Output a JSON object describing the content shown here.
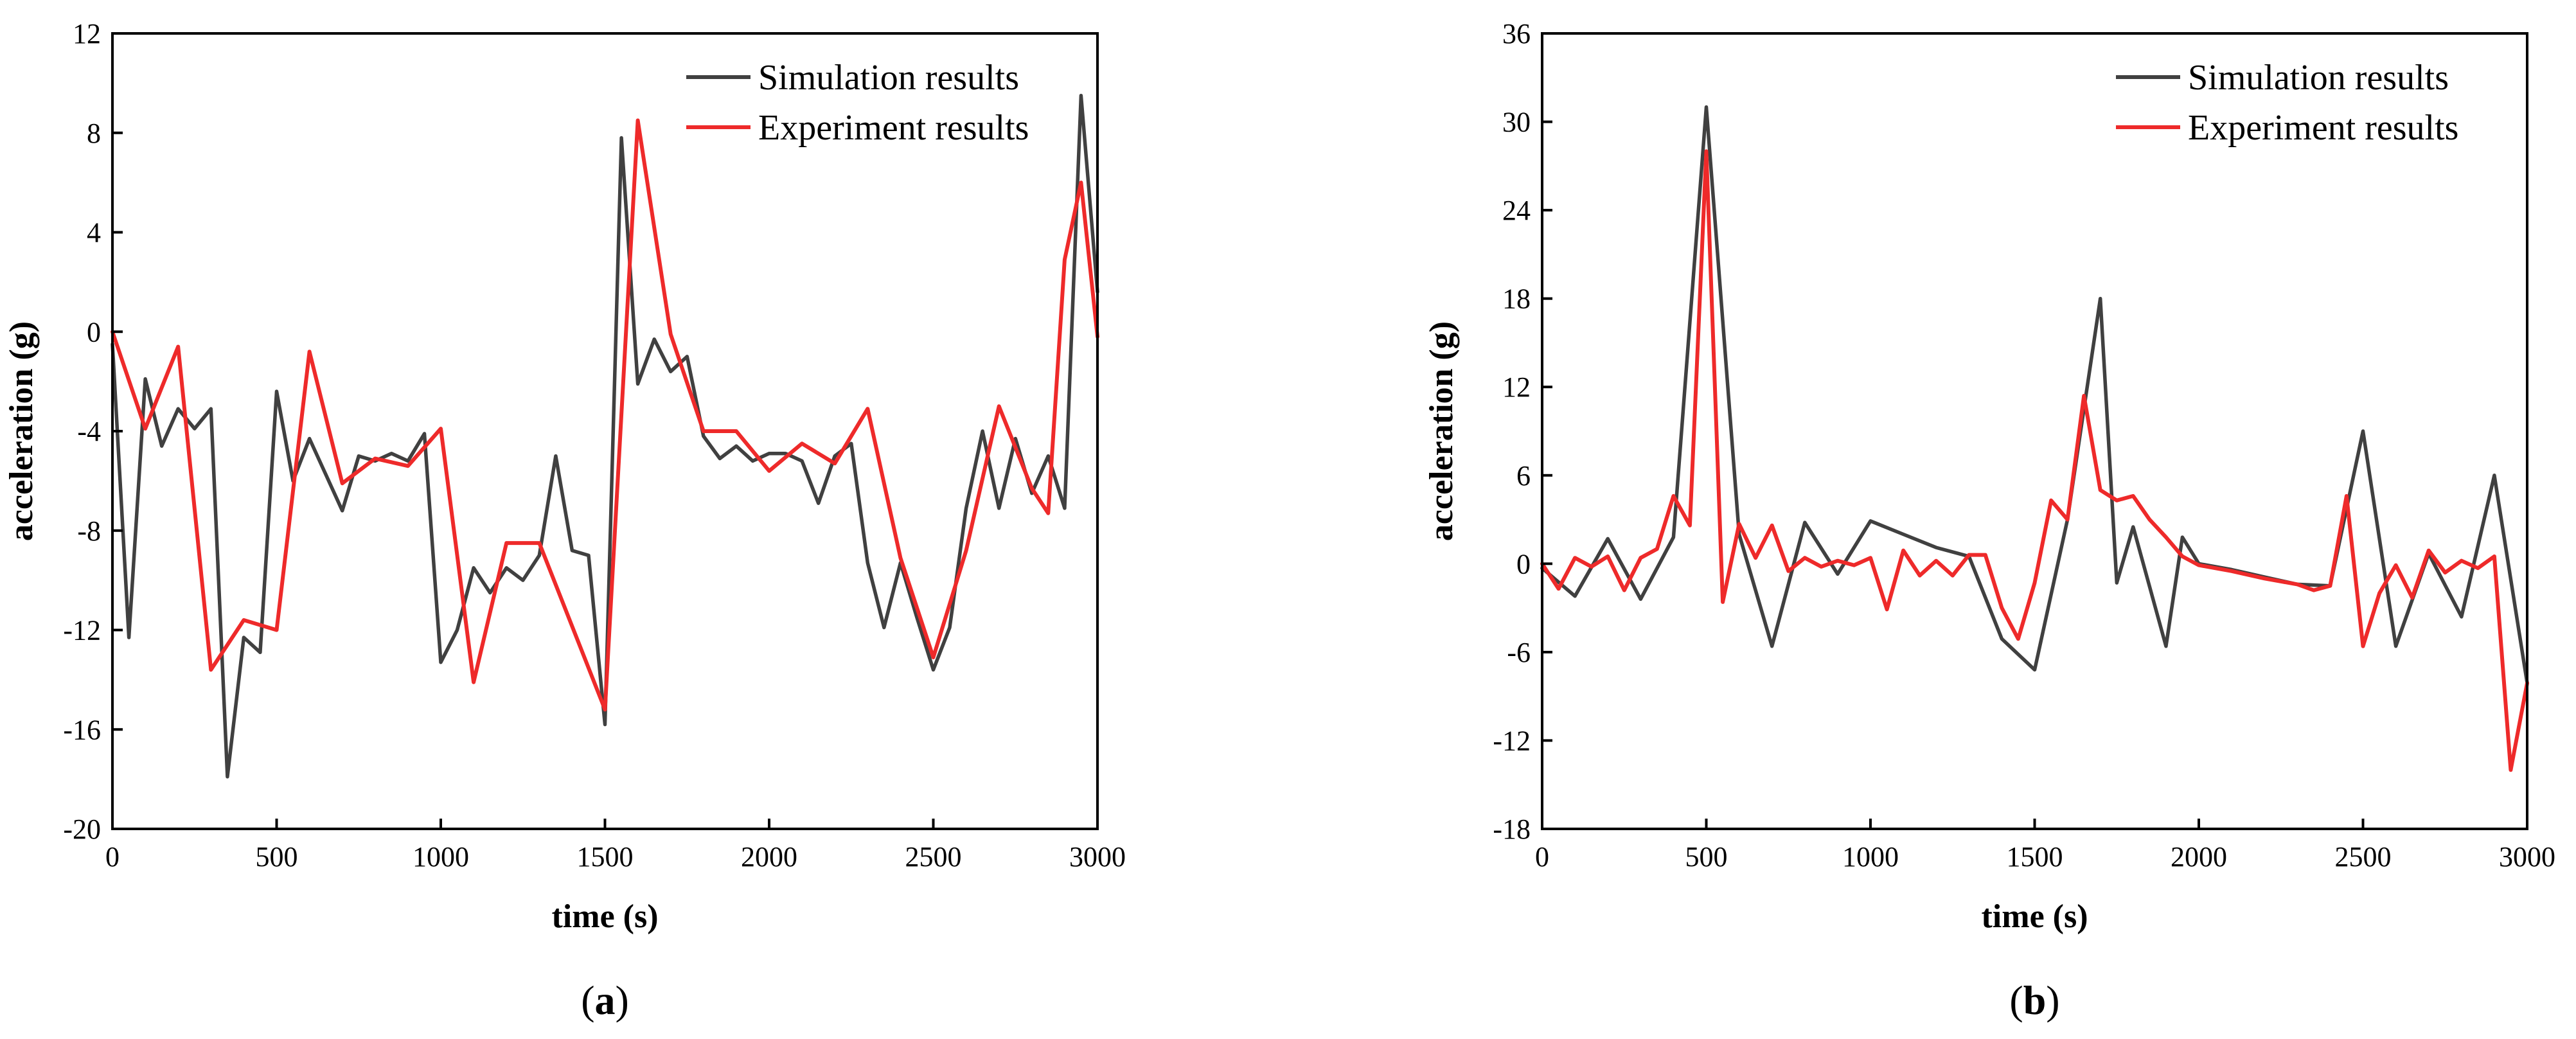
{
  "chart_data": [
    {
      "type": "line",
      "panel_label": {
        "open": "(",
        "letter": "a",
        "close": ")"
      },
      "xlabel": "time (s)",
      "ylabel": "acceleration (g)",
      "xlim": [
        0,
        3000
      ],
      "ylim": [
        -20,
        12
      ],
      "xticks": [
        0,
        500,
        1000,
        1500,
        2000,
        2500,
        3000
      ],
      "yticks": [
        -20,
        -16,
        -12,
        -8,
        -4,
        0,
        4,
        8,
        12
      ],
      "grid": false,
      "legend": "top-right",
      "colors": {
        "simulation": "#404040",
        "experiment": "#ee2a2a"
      },
      "series": [
        {
          "name": "Simulation results",
          "key": "simulation",
          "x": [
            0,
            50,
            100,
            150,
            200,
            250,
            300,
            350,
            400,
            450,
            500,
            550,
            600,
            700,
            750,
            800,
            850,
            900,
            950,
            1000,
            1050,
            1100,
            1150,
            1200,
            1250,
            1300,
            1350,
            1400,
            1450,
            1500,
            1550,
            1600,
            1650,
            1700,
            1750,
            1800,
            1850,
            1900,
            1950,
            2000,
            2050,
            2100,
            2150,
            2200,
            2250,
            2300,
            2350,
            2400,
            2450,
            2500,
            2550,
            2600,
            2650,
            2700,
            2750,
            2800,
            2850,
            2900,
            2950,
            3000
          ],
          "y": [
            -0.5,
            -12.3,
            -1.9,
            -4.6,
            -3.1,
            -3.9,
            -3.1,
            -17.9,
            -12.3,
            -12.9,
            -2.4,
            -6.0,
            -4.3,
            -7.2,
            -5.0,
            -5.2,
            -4.9,
            -5.2,
            -4.1,
            -13.3,
            -12.0,
            -9.5,
            -10.5,
            -9.5,
            -10.0,
            -9.0,
            -5.0,
            -8.8,
            -9.0,
            -15.8,
            7.8,
            -2.1,
            -0.3,
            -1.6,
            -1.0,
            -4.2,
            -5.1,
            -4.6,
            -5.2,
            -4.9,
            -4.9,
            -5.2,
            -6.9,
            -5.0,
            -4.5,
            -9.3,
            -11.9,
            -9.3,
            -11.5,
            -13.6,
            -11.9,
            -7.1,
            -4.0,
            -7.1,
            -4.3,
            -6.5,
            -5.0,
            -7.1,
            9.5,
            1.6
          ]
        },
        {
          "name": "Experiment results",
          "key": "experiment",
          "x": [
            0,
            100,
            200,
            300,
            400,
            500,
            600,
            700,
            800,
            900,
            1000,
            1100,
            1200,
            1300,
            1500,
            1600,
            1700,
            1800,
            1900,
            2000,
            2100,
            2200,
            2300,
            2400,
            2500,
            2600,
            2700,
            2800,
            2850,
            2900,
            2950,
            3000
          ],
          "y": [
            0,
            -3.9,
            -0.6,
            -13.6,
            -11.6,
            -12.0,
            -0.8,
            -6.1,
            -5.1,
            -5.4,
            -3.9,
            -14.1,
            -8.5,
            -8.5,
            -15.2,
            8.5,
            -0.1,
            -4.0,
            -4.0,
            -5.6,
            -4.5,
            -5.3,
            -3.1,
            -9.1,
            -13.1,
            -8.8,
            -3.0,
            -6.3,
            -7.3,
            2.9,
            6.0,
            -0.2
          ]
        }
      ]
    },
    {
      "type": "line",
      "panel_label": {
        "open": "(",
        "letter": "b",
        "close": ")"
      },
      "xlabel": "time (s)",
      "ylabel": "acceleration (g)",
      "xlim": [
        0,
        3000
      ],
      "ylim": [
        -18,
        36
      ],
      "xticks": [
        0,
        500,
        1000,
        1500,
        2000,
        2500,
        3000
      ],
      "yticks": [
        -18,
        -12,
        -6,
        0,
        6,
        12,
        18,
        24,
        30,
        36
      ],
      "grid": false,
      "legend": "top-right",
      "colors": {
        "simulation": "#404040",
        "experiment": "#ee2a2a"
      },
      "series": [
        {
          "name": "Simulation results",
          "key": "simulation",
          "x": [
            0,
            100,
            200,
            300,
            400,
            500,
            600,
            700,
            800,
            900,
            1000,
            1100,
            1200,
            1300,
            1400,
            1500,
            1600,
            1700,
            1750,
            1800,
            1900,
            1950,
            2000,
            2100,
            2200,
            2300,
            2400,
            2500,
            2600,
            2700,
            2800,
            2900,
            3000
          ],
          "y": [
            -0.3,
            -2.2,
            1.7,
            -2.4,
            1.8,
            31.0,
            2.0,
            -5.6,
            2.8,
            -0.7,
            2.9,
            2.0,
            1.1,
            0.5,
            -5.1,
            -7.2,
            3.0,
            18.0,
            -1.3,
            2.5,
            -5.6,
            1.8,
            0.0,
            -0.4,
            -0.9,
            -1.4,
            -1.5,
            9.0,
            -5.6,
            0.7,
            -3.6,
            6.0,
            -8.1
          ]
        },
        {
          "name": "Experiment results",
          "key": "experiment",
          "x": [
            0,
            50,
            100,
            150,
            200,
            250,
            300,
            350,
            400,
            450,
            500,
            550,
            600,
            650,
            700,
            750,
            800,
            850,
            900,
            950,
            1000,
            1050,
            1100,
            1150,
            1200,
            1250,
            1300,
            1350,
            1400,
            1450,
            1500,
            1550,
            1600,
            1650,
            1700,
            1750,
            1800,
            1850,
            1900,
            1950,
            2000,
            2100,
            2200,
            2300,
            2350,
            2400,
            2450,
            2500,
            2550,
            2600,
            2650,
            2700,
            2750,
            2800,
            2850,
            2900,
            2950,
            3000
          ],
          "y": [
            0.0,
            -1.7,
            0.4,
            -0.2,
            0.5,
            -1.8,
            0.4,
            1.0,
            4.6,
            2.6,
            28.0,
            -2.6,
            2.7,
            0.4,
            2.6,
            -0.5,
            0.4,
            -0.2,
            0.2,
            -0.1,
            0.4,
            -3.1,
            0.9,
            -0.8,
            0.2,
            -0.8,
            0.6,
            0.6,
            -3.0,
            -5.1,
            -1.3,
            4.3,
            3.0,
            11.4,
            5.0,
            4.3,
            4.6,
            3.0,
            1.8,
            0.5,
            -0.1,
            -0.5,
            -1.0,
            -1.4,
            -1.8,
            -1.5,
            4.6,
            -5.6,
            -2.0,
            -0.1,
            -2.3,
            0.9,
            -0.6,
            0.2,
            -0.3,
            0.5,
            -14.0,
            -8.1
          ]
        }
      ]
    }
  ]
}
